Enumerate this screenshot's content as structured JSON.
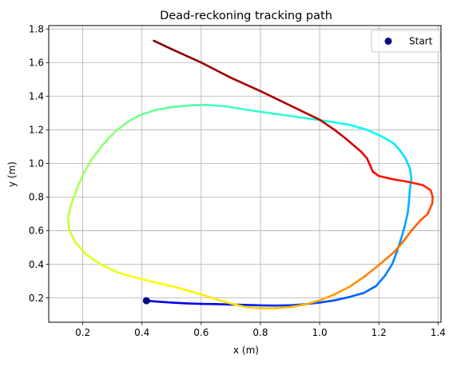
{
  "chart_data": {
    "type": "line",
    "title": "Dead-reckoning tracking path",
    "xlabel": "x (m)",
    "ylabel": "y (m)",
    "xlim": [
      0.085,
      1.41
    ],
    "ylim": [
      0.055,
      1.82
    ],
    "xticks": [
      0.2,
      0.4,
      0.6,
      0.8,
      1.0,
      1.2,
      1.4
    ],
    "xtick_labels": [
      "0.2",
      "0.4",
      "0.6",
      "0.8",
      "1.0",
      "1.2",
      "1.4"
    ],
    "yticks": [
      0.2,
      0.4,
      0.6,
      0.8,
      1.0,
      1.2,
      1.4,
      1.6,
      1.8
    ],
    "ytick_labels": [
      "0.2",
      "0.4",
      "0.6",
      "0.8",
      "1.0",
      "1.2",
      "1.4",
      "1.6",
      "1.8"
    ],
    "grid": true,
    "colormap": "jet",
    "legend": {
      "position": "top-right",
      "entries": [
        {
          "label": "Start",
          "marker": "circle",
          "color": "#0b0b85"
        }
      ]
    },
    "start_point": {
      "x": 0.415,
      "y": 0.183,
      "color": "#0b0b85"
    },
    "series": [
      {
        "path": [
          [
            0.415,
            0.183
          ],
          [
            0.45,
            0.178
          ],
          [
            0.5,
            0.172
          ],
          [
            0.55,
            0.167
          ],
          [
            0.6,
            0.164
          ],
          [
            0.65,
            0.163
          ],
          [
            0.7,
            0.16
          ],
          [
            0.75,
            0.158
          ],
          [
            0.8,
            0.155
          ],
          [
            0.85,
            0.154
          ],
          [
            0.9,
            0.156
          ],
          [
            0.95,
            0.162
          ],
          [
            1.0,
            0.172
          ],
          [
            1.05,
            0.185
          ],
          [
            1.1,
            0.205
          ],
          [
            1.15,
            0.23
          ],
          [
            1.19,
            0.27
          ],
          [
            1.22,
            0.33
          ],
          [
            1.245,
            0.4
          ],
          [
            1.26,
            0.47
          ],
          [
            1.275,
            0.55
          ],
          [
            1.288,
            0.63
          ],
          [
            1.298,
            0.71
          ],
          [
            1.302,
            0.78
          ],
          [
            1.305,
            0.85
          ],
          [
            1.31,
            0.91
          ],
          [
            1.305,
            0.97
          ],
          [
            1.29,
            1.03
          ],
          [
            1.27,
            1.08
          ],
          [
            1.25,
            1.12
          ],
          [
            1.21,
            1.16
          ],
          [
            1.16,
            1.2
          ],
          [
            1.1,
            1.23
          ],
          [
            1.03,
            1.25
          ],
          [
            0.95,
            1.27
          ],
          [
            0.85,
            1.295
          ],
          [
            0.75,
            1.32
          ],
          [
            0.68,
            1.34
          ],
          [
            0.62,
            1.348
          ],
          [
            0.56,
            1.345
          ],
          [
            0.5,
            1.335
          ],
          [
            0.44,
            1.315
          ],
          [
            0.39,
            1.285
          ],
          [
            0.35,
            1.245
          ],
          [
            0.31,
            1.19
          ],
          [
            0.27,
            1.115
          ],
          [
            0.23,
            1.025
          ],
          [
            0.2,
            0.93
          ],
          [
            0.18,
            0.85
          ],
          [
            0.16,
            0.75
          ],
          [
            0.15,
            0.68
          ],
          [
            0.155,
            0.6
          ],
          [
            0.175,
            0.53
          ],
          [
            0.21,
            0.46
          ],
          [
            0.26,
            0.4
          ],
          [
            0.32,
            0.35
          ],
          [
            0.4,
            0.31
          ],
          [
            0.5,
            0.27
          ],
          [
            0.6,
            0.22
          ],
          [
            0.68,
            0.175
          ],
          [
            0.75,
            0.145
          ],
          [
            0.8,
            0.138
          ],
          [
            0.85,
            0.138
          ],
          [
            0.9,
            0.145
          ],
          [
            0.95,
            0.16
          ],
          [
            1.0,
            0.185
          ],
          [
            1.05,
            0.22
          ],
          [
            1.1,
            0.265
          ],
          [
            1.15,
            0.325
          ],
          [
            1.2,
            0.395
          ],
          [
            1.25,
            0.47
          ],
          [
            1.28,
            0.53
          ],
          [
            1.31,
            0.6
          ],
          [
            1.34,
            0.66
          ],
          [
            1.365,
            0.7
          ],
          [
            1.38,
            0.76
          ],
          [
            1.382,
            0.8
          ],
          [
            1.375,
            0.84
          ],
          [
            1.35,
            0.87
          ],
          [
            1.3,
            0.89
          ],
          [
            1.25,
            0.905
          ],
          [
            1.2,
            0.925
          ],
          [
            1.18,
            0.95
          ],
          [
            1.17,
            0.99
          ],
          [
            1.16,
            1.03
          ],
          [
            1.14,
            1.07
          ],
          [
            1.12,
            1.1
          ],
          [
            1.09,
            1.145
          ],
          [
            1.05,
            1.2
          ],
          [
            1.0,
            1.26
          ],
          [
            0.9,
            1.345
          ],
          [
            0.8,
            1.43
          ],
          [
            0.7,
            1.51
          ],
          [
            0.6,
            1.6
          ],
          [
            0.5,
            1.68
          ],
          [
            0.44,
            1.73
          ]
        ]
      }
    ]
  }
}
